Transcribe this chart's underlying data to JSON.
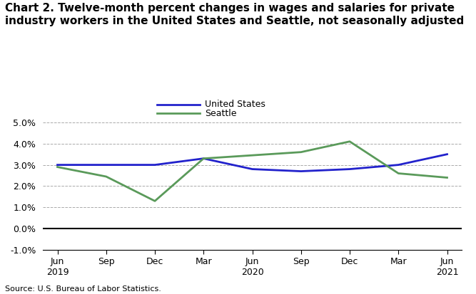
{
  "title": "Chart 2. Twelve-month percent changes in wages and salaries for private\nindustry workers in the United States and Seattle, not seasonally adjusted",
  "x_labels": [
    "Jun\n2019",
    "Sep",
    "Dec",
    "Mar",
    "Jun\n2020",
    "Sep",
    "Dec",
    "Mar",
    "Jun\n2021"
  ],
  "x_positions": [
    0,
    1,
    2,
    3,
    4,
    5,
    6,
    7,
    8
  ],
  "us_values": [
    3.0,
    3.0,
    3.0,
    3.3,
    2.8,
    2.7,
    2.8,
    3.0,
    3.5
  ],
  "seattle_values": [
    2.9,
    2.45,
    1.3,
    3.3,
    3.45,
    3.6,
    4.1,
    2.6,
    2.4
  ],
  "us_color": "#2222CC",
  "seattle_color": "#5A9A5A",
  "us_label": "United States",
  "seattle_label": "Seattle",
  "ylim": [
    -1.0,
    5.5
  ],
  "yticks": [
    -1.0,
    0.0,
    1.0,
    2.0,
    3.0,
    4.0,
    5.0
  ],
  "ytick_labels": [
    "-1.0%",
    "0.0%",
    "1.0%",
    "2.0%",
    "3.0%",
    "4.0%",
    "5.0%"
  ],
  "source": "Source: U.S. Bureau of Labor Statistics.",
  "linewidth": 2.0,
  "background_color": "#ffffff",
  "title_fontsize": 11,
  "tick_fontsize": 9,
  "source_fontsize": 8,
  "legend_fontsize": 9
}
